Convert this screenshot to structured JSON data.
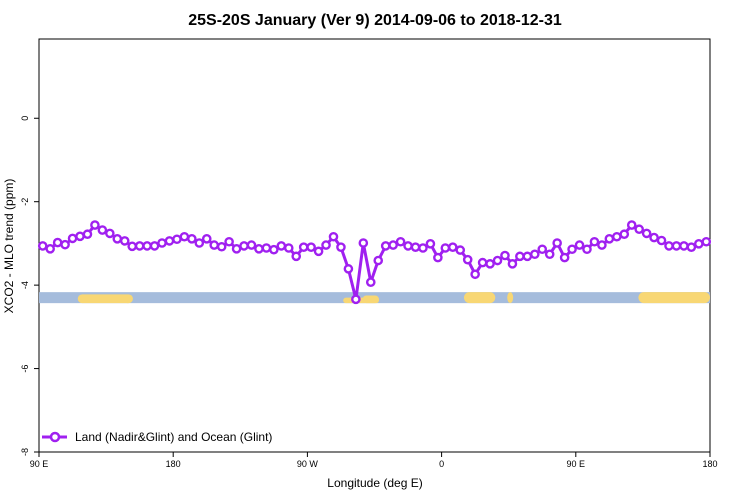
{
  "chart_data": {
    "type": "line",
    "title": "25S-20S January (Ver 9)   2014-09-06 to 2018-12-31",
    "xlabel": "Longitude (deg E)",
    "ylabel": "XCO2 - MLO trend (ppm)",
    "x_ticks": [
      {
        "value": 90,
        "label": "90 E"
      },
      {
        "value": 180,
        "label": "180"
      },
      {
        "value": 270,
        "label": "90 W"
      },
      {
        "value": 360,
        "label": "0"
      },
      {
        "value": 450,
        "label": "90 E"
      },
      {
        "value": 540,
        "label": "180"
      }
    ],
    "y_ticks": [
      {
        "value": 0,
        "label": "0"
      },
      {
        "value": -2,
        "label": "-2"
      },
      {
        "value": -4,
        "label": "-4"
      },
      {
        "value": -6,
        "label": "-6"
      },
      {
        "value": -8,
        "label": "-8"
      }
    ],
    "xlim": [
      90,
      540
    ],
    "ylim": [
      -8,
      1.9
    ],
    "grid": false,
    "legend_position": "bottom-left",
    "series": [
      {
        "name": "Land (Nadir&Glint) and Ocean (Glint)",
        "color": "#a020f0",
        "marker": "open-circle",
        "points": [
          [
            92.5,
            -3.06
          ],
          [
            97.5,
            -3.13
          ],
          [
            102.5,
            -2.98
          ],
          [
            107.5,
            -3.03
          ],
          [
            112.5,
            -2.88
          ],
          [
            117.5,
            -2.83
          ],
          [
            122.5,
            -2.78
          ],
          [
            127.5,
            -2.56
          ],
          [
            132.5,
            -2.68
          ],
          [
            137.5,
            -2.76
          ],
          [
            142.5,
            -2.89
          ],
          [
            147.5,
            -2.94
          ],
          [
            152.5,
            -3.07
          ],
          [
            157.5,
            -3.06
          ],
          [
            162.5,
            -3.06
          ],
          [
            167.5,
            -3.06
          ],
          [
            172.5,
            -2.99
          ],
          [
            177.5,
            -2.94
          ],
          [
            182.5,
            -2.9
          ],
          [
            187.5,
            -2.84
          ],
          [
            192.5,
            -2.89
          ],
          [
            197.5,
            -2.99
          ],
          [
            202.5,
            -2.89
          ],
          [
            207.5,
            -3.04
          ],
          [
            212.5,
            -3.08
          ],
          [
            217.5,
            -2.96
          ],
          [
            222.5,
            -3.13
          ],
          [
            227.5,
            -3.06
          ],
          [
            232.5,
            -3.04
          ],
          [
            237.5,
            -3.13
          ],
          [
            242.5,
            -3.11
          ],
          [
            247.5,
            -3.15
          ],
          [
            252.5,
            -3.06
          ],
          [
            257.5,
            -3.11
          ],
          [
            262.5,
            -3.31
          ],
          [
            267.5,
            -3.09
          ],
          [
            272.5,
            -3.09
          ],
          [
            277.5,
            -3.19
          ],
          [
            282.5,
            -3.04
          ],
          [
            287.5,
            -2.84
          ],
          [
            292.5,
            -3.09
          ],
          [
            297.5,
            -3.61
          ],
          [
            302.5,
            -4.34
          ],
          [
            307.5,
            -2.99
          ],
          [
            312.5,
            -3.93
          ],
          [
            317.5,
            -3.41
          ],
          [
            322.5,
            -3.06
          ],
          [
            327.5,
            -3.04
          ],
          [
            332.5,
            -2.96
          ],
          [
            337.5,
            -3.06
          ],
          [
            342.5,
            -3.09
          ],
          [
            347.5,
            -3.11
          ],
          [
            352.5,
            -3.01
          ],
          [
            357.5,
            -3.34
          ],
          [
            362.5,
            -3.11
          ],
          [
            367.5,
            -3.09
          ],
          [
            372.5,
            -3.16
          ],
          [
            377.5,
            -3.39
          ],
          [
            382.5,
            -3.74
          ],
          [
            387.5,
            -3.46
          ],
          [
            392.5,
            -3.49
          ],
          [
            397.5,
            -3.41
          ],
          [
            402.5,
            -3.29
          ],
          [
            407.5,
            -3.49
          ],
          [
            412.5,
            -3.31
          ],
          [
            417.5,
            -3.31
          ],
          [
            422.5,
            -3.26
          ],
          [
            427.5,
            -3.14
          ],
          [
            432.5,
            -3.26
          ],
          [
            437.5,
            -2.99
          ],
          [
            442.5,
            -3.34
          ],
          [
            447.5,
            -3.14
          ],
          [
            452.5,
            -3.04
          ],
          [
            457.5,
            -3.14
          ],
          [
            462.5,
            -2.96
          ],
          [
            467.5,
            -3.04
          ],
          [
            472.5,
            -2.89
          ],
          [
            477.5,
            -2.84
          ],
          [
            482.5,
            -2.78
          ],
          [
            487.5,
            -2.56
          ],
          [
            492.5,
            -2.66
          ],
          [
            497.5,
            -2.76
          ],
          [
            502.5,
            -2.86
          ],
          [
            507.5,
            -2.93
          ],
          [
            512.5,
            -3.06
          ],
          [
            517.5,
            -3.06
          ],
          [
            522.5,
            -3.06
          ],
          [
            527.5,
            -3.09
          ],
          [
            532.5,
            -3.01
          ],
          [
            537.5,
            -2.96
          ]
        ]
      }
    ],
    "land_ocean_bar": {
      "y": -4.3,
      "ocean_color": "#a5bcdc",
      "land_color": "#f8d774",
      "land_segments": [
        [
          116,
          153,
          0.8
        ],
        [
          148,
          151,
          0.35
        ],
        [
          294,
          318,
          0.5
        ],
        [
          307,
          318,
          0.7
        ],
        [
          375,
          396,
          1.0
        ],
        [
          404,
          408,
          1.0
        ],
        [
          492,
          547,
          1.0
        ]
      ]
    }
  }
}
